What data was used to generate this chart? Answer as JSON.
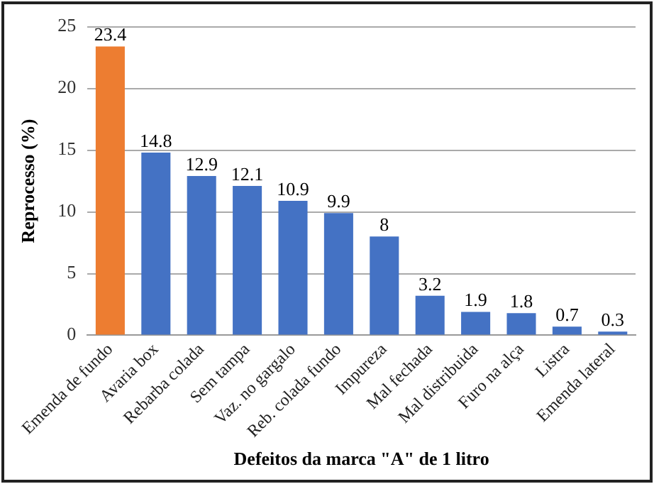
{
  "chart_data": {
    "type": "bar",
    "xlabel": "Defeitos da marca \"A\" de 1 litro",
    "ylabel": "Reprocesso (%)",
    "categories": [
      "Emenda de fundo",
      "Avaria box",
      "Rebarba colada",
      "Sem tampa",
      "Vaz. no gargalo",
      "Reb. colada fundo",
      "Impureza",
      "Mal fechada",
      "Mal distribuida",
      "Furo na alça",
      "Listra",
      "Emenda lateral"
    ],
    "values": [
      23.4,
      14.8,
      12.9,
      12.1,
      10.9,
      9.9,
      8,
      3.2,
      1.9,
      1.8,
      0.7,
      0.3
    ],
    "colors": [
      "#ed7d31",
      "#4472c4",
      "#4472c4",
      "#4472c4",
      "#4472c4",
      "#4472c4",
      "#4472c4",
      "#4472c4",
      "#4472c4",
      "#4472c4",
      "#4472c4",
      "#4472c4"
    ],
    "ylim": [
      0,
      25
    ],
    "yticks": [
      0,
      5,
      10,
      15,
      20,
      25
    ],
    "grid": "y",
    "data_labels": true,
    "legend": false
  }
}
